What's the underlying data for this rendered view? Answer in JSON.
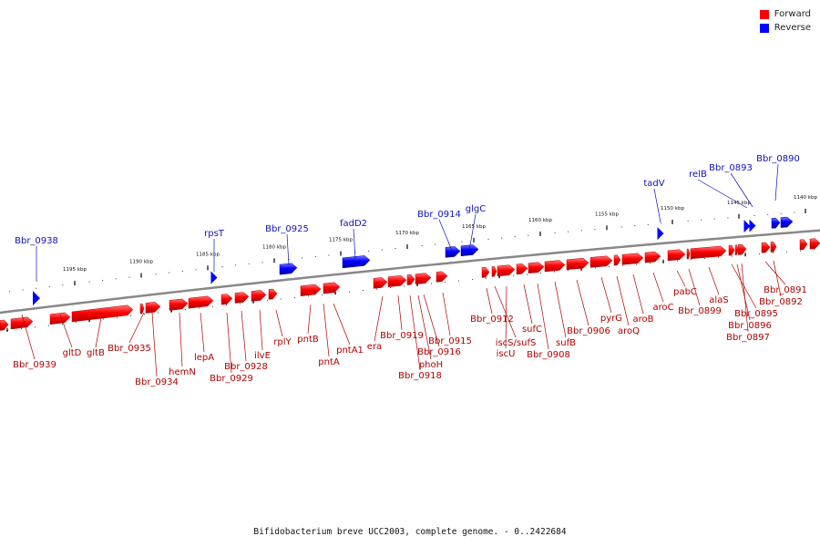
{
  "legend": [
    {
      "label": "Forward",
      "color": "#ff0000"
    },
    {
      "label": "Reverse",
      "color": "#0000ff"
    }
  ],
  "caption": "Bifidobacterium breve UCC2003, complete genome. - 0..2422684",
  "ticks": [
    "1195 kbp",
    "1190 kbp",
    "1185 kbp",
    "1180 kbp",
    "1175 kbp",
    "1170 kbp",
    "1165 kbp",
    "1160 kbp",
    "1155 kbp",
    "1150 kbp",
    "1145 kbp",
    "1140 kbp"
  ],
  "colors": {
    "forward": "#ff0000",
    "reverse": "#0000ff",
    "label_forward": "#b00000",
    "label_reverse": "#1010c0",
    "backbone": "#888888"
  },
  "genes": [
    {
      "id": "Bbr_0938",
      "strand": "reverse",
      "mark": "blue-tri-a"
    },
    {
      "id": "rpsT",
      "strand": "reverse",
      "mark": "blue-tri-b"
    },
    {
      "id": "Bbr_0925",
      "strand": "reverse",
      "mark": "blue-box-a"
    },
    {
      "id": "fadD2",
      "strand": "reverse",
      "mark": "blue-box-b"
    },
    {
      "id": "Bbr_0914",
      "strand": "reverse",
      "mark": "blue-box-c"
    },
    {
      "id": "glgC",
      "strand": "reverse",
      "mark": "blue-box-d"
    },
    {
      "id": "tadV",
      "strand": "reverse",
      "mark": "blue-tri-c"
    },
    {
      "id": "relB",
      "strand": "reverse",
      "mark": "blue-tri-d"
    },
    {
      "id": "Bbr_0893",
      "strand": "reverse",
      "mark": "blue-tri-e"
    },
    {
      "id": "Bbr_0890",
      "strand": "reverse",
      "mark": "blue-box-e"
    },
    {
      "id": "Bbr_0939",
      "strand": "forward"
    },
    {
      "id": "gltD",
      "strand": "forward"
    },
    {
      "id": "gltB",
      "strand": "forward"
    },
    {
      "id": "Bbr_0935",
      "strand": "forward"
    },
    {
      "id": "Bbr_0934",
      "strand": "forward"
    },
    {
      "id": "hemN",
      "strand": "forward"
    },
    {
      "id": "lepA",
      "strand": "forward"
    },
    {
      "id": "Bbr_0929",
      "strand": "forward"
    },
    {
      "id": "Bbr_0928",
      "strand": "forward"
    },
    {
      "id": "ilvE",
      "strand": "forward"
    },
    {
      "id": "rplY",
      "strand": "forward"
    },
    {
      "id": "pntB",
      "strand": "forward"
    },
    {
      "id": "pntA",
      "strand": "forward"
    },
    {
      "id": "pntA1",
      "strand": "forward"
    },
    {
      "id": "era",
      "strand": "forward"
    },
    {
      "id": "Bbr_0919",
      "strand": "forward"
    },
    {
      "id": "Bbr_0918",
      "strand": "forward"
    },
    {
      "id": "phoH",
      "strand": "forward"
    },
    {
      "id": "Bbr_0916",
      "strand": "forward"
    },
    {
      "id": "Bbr_0915",
      "strand": "forward"
    },
    {
      "id": "Bbr_0912",
      "strand": "forward"
    },
    {
      "id": "iscS/sufS",
      "strand": "forward"
    },
    {
      "id": "iscU",
      "strand": "forward"
    },
    {
      "id": "sufC",
      "strand": "forward"
    },
    {
      "id": "Bbr_0908",
      "strand": "forward"
    },
    {
      "id": "sufB",
      "strand": "forward"
    },
    {
      "id": "Bbr_0906",
      "strand": "forward"
    },
    {
      "id": "pyrG",
      "strand": "forward"
    },
    {
      "id": "aroQ",
      "strand": "forward"
    },
    {
      "id": "aroB",
      "strand": "forward"
    },
    {
      "id": "aroC",
      "strand": "forward"
    },
    {
      "id": "pabC",
      "strand": "forward"
    },
    {
      "id": "Bbr_0899",
      "strand": "forward"
    },
    {
      "id": "alaS",
      "strand": "forward"
    },
    {
      "id": "Bbr_0895",
      "strand": "forward"
    },
    {
      "id": "Bbr_0896",
      "strand": "forward"
    },
    {
      "id": "Bbr_0897",
      "strand": "forward"
    },
    {
      "id": "Bbr_0891",
      "strand": "forward"
    },
    {
      "id": "Bbr_0892",
      "strand": "forward"
    }
  ]
}
